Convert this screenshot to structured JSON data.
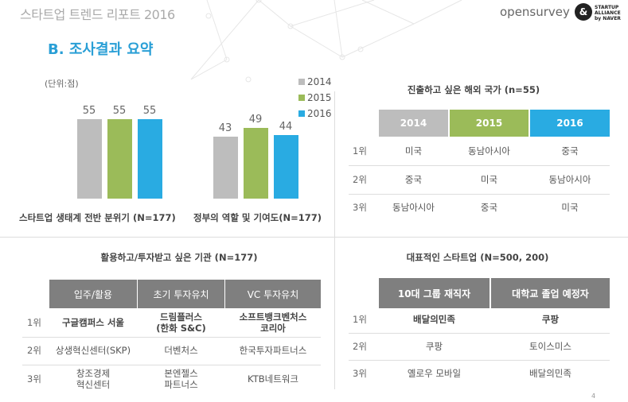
{
  "header": {
    "title": "스타트업 트렌드 리포트 2016",
    "section": "B. 조사결과 요약",
    "logo_opensurvey": "opensurvey",
    "logo_startup": "STARTUP ALLIANCE by NAVER"
  },
  "colors": {
    "2014": "#bdbdbd",
    "2015": "#9bbb59",
    "2016": "#29abe2",
    "header_gray": "#7f7f7f",
    "accent": "#2a9fd6"
  },
  "chart_data": {
    "type": "bar",
    "unit_label": "(단위:점)",
    "categories": [
      "스타트업 생태계 전반 분위기 (N=177)",
      "정부의 역할 및 기여도(N=177)"
    ],
    "series": [
      {
        "name": "2014",
        "values": [
          55,
          43
        ]
      },
      {
        "name": "2015",
        "values": [
          55,
          49
        ]
      },
      {
        "name": "2016",
        "values": [
          55,
          44
        ]
      }
    ],
    "legend": "top-right",
    "ylim": [
      0,
      60
    ]
  },
  "countries": {
    "title": "진출하고 싶은 해외 국가 (n=55)",
    "headers": [
      "2014",
      "2015",
      "2016"
    ],
    "rows": [
      {
        "rank": "1위",
        "cells": [
          "미국",
          "동남아시아",
          "중국"
        ]
      },
      {
        "rank": "2위",
        "cells": [
          "중국",
          "미국",
          "동남아시아"
        ]
      },
      {
        "rank": "3위",
        "cells": [
          "동남아시아",
          "중국",
          "미국"
        ]
      }
    ]
  },
  "institutions": {
    "title": "활용하고/투자받고 싶은 기관 (N=177)",
    "headers": [
      "입주/활용",
      "초기 투자유치",
      "VC 투자유치"
    ],
    "rows": [
      {
        "rank": "1위",
        "cells": [
          "구글캠퍼스 서울",
          "드림플러스\n(한화 S&C)",
          "소프트뱅크벤처스\n코리아"
        ]
      },
      {
        "rank": "2위",
        "cells": [
          "상생혁신센터(SKP)",
          "더벤처스",
          "한국투자파트너스"
        ]
      },
      {
        "rank": "3위",
        "cells": [
          "창조경제\n혁신센터",
          "본엔젤스\n파트너스",
          "KTB네트워크"
        ]
      }
    ]
  },
  "startups": {
    "title": "대표적인 스타트업 (N=500, 200)",
    "headers": [
      "10대 그룹 재직자",
      "대학교 졸업 예정자"
    ],
    "rows": [
      {
        "rank": "1위",
        "cells": [
          "배달의민족",
          "쿠팡"
        ]
      },
      {
        "rank": "2위",
        "cells": [
          "쿠팡",
          "토이스미스"
        ]
      },
      {
        "rank": "3위",
        "cells": [
          "옐로우 모바일",
          "배달의민족"
        ]
      }
    ]
  },
  "page_number": "4"
}
